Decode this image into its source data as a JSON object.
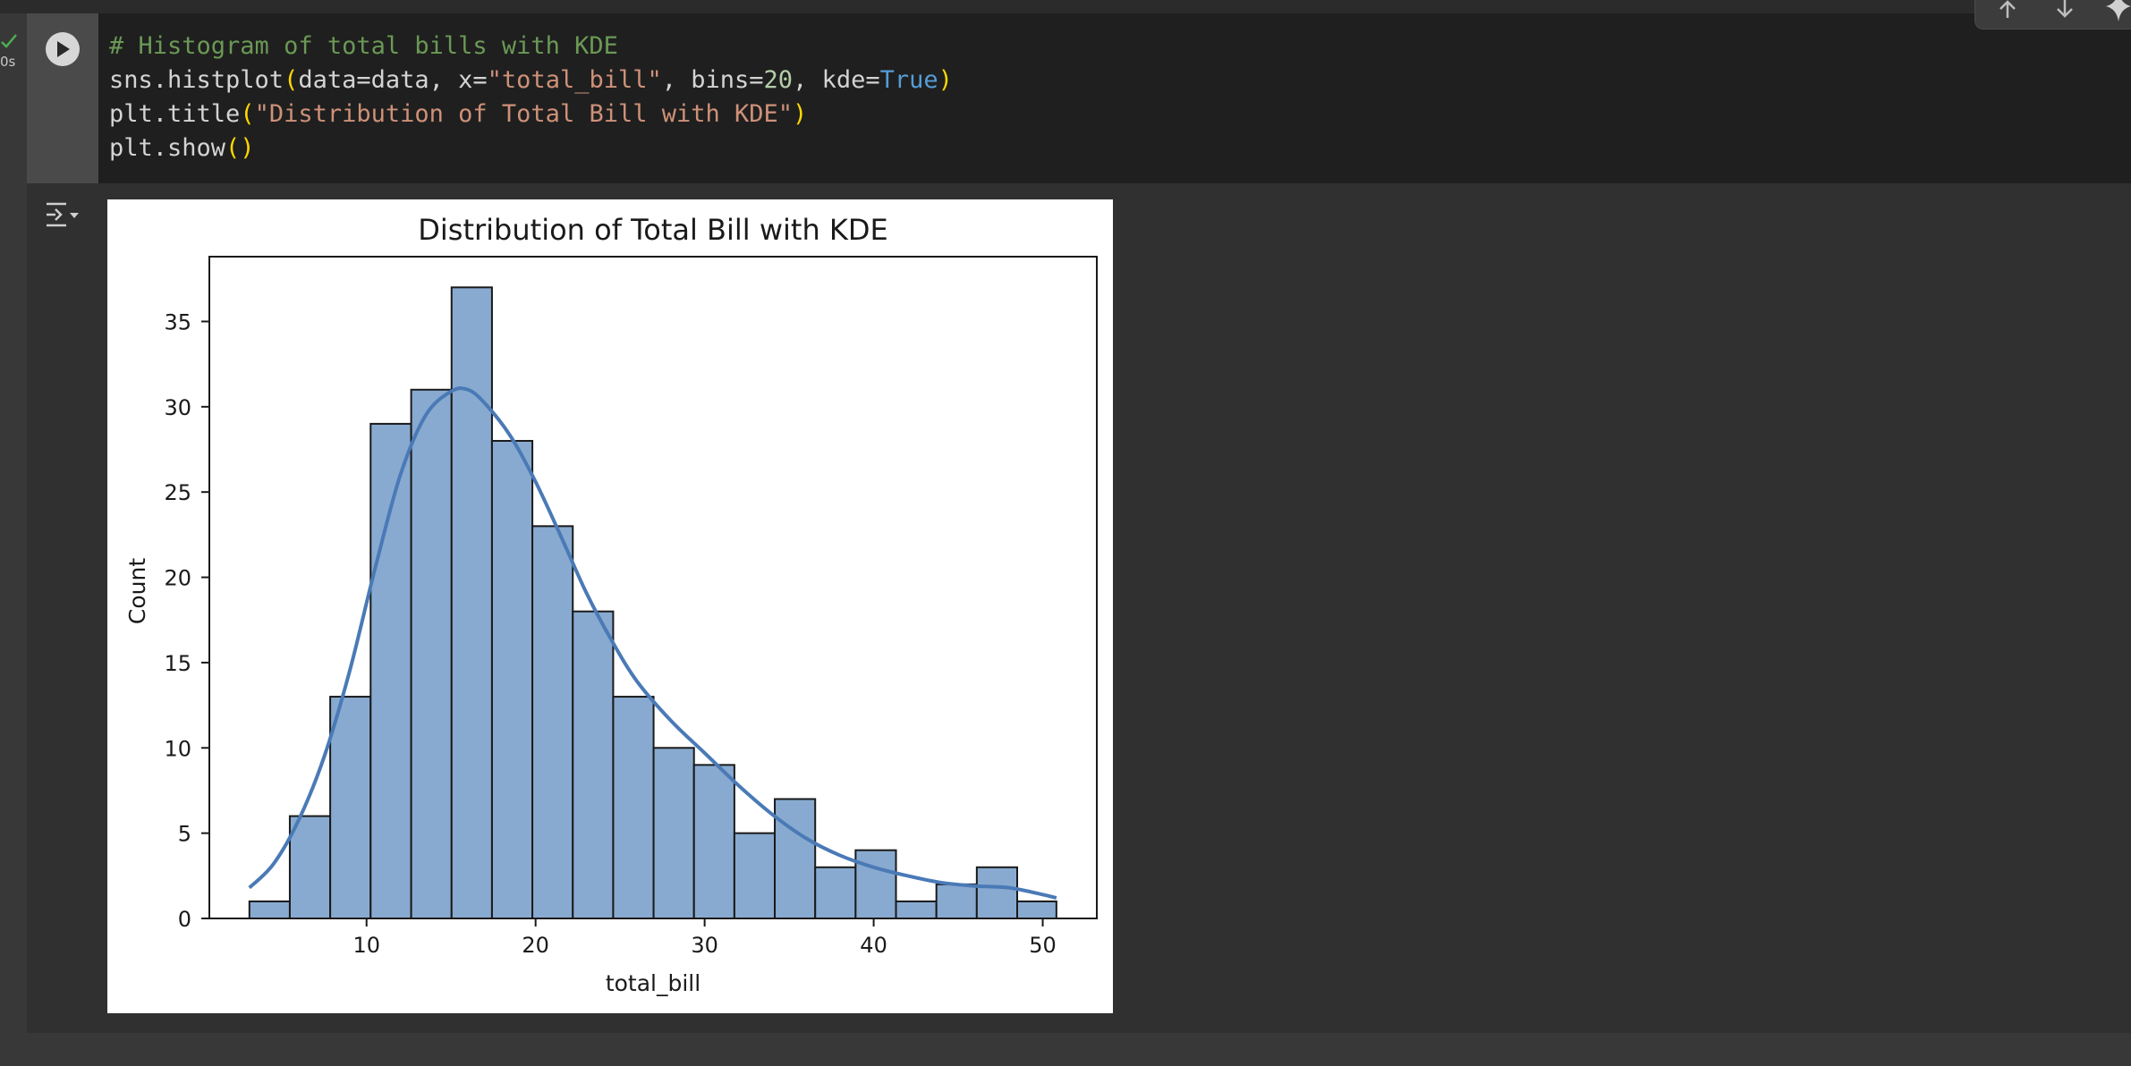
{
  "exec": {
    "time": "0s"
  },
  "code": {
    "comment": "# Histogram of total bills with KDE",
    "line2": {
      "a": "sns.histplot",
      "p1": "(",
      "b": "data=data, x=",
      "s1": "\"total_bill\"",
      "c": ", bins=",
      "n1": "20",
      "d": ", kde=",
      "k1": "True",
      "p2": ")"
    },
    "line3": {
      "a": "plt.title",
      "p1": "(",
      "s1": "\"Distribution of Total Bill with KDE\"",
      "p2": ")"
    },
    "line4": {
      "a": "plt.show",
      "p1": "()"
    }
  },
  "icons": {
    "exec_status": "check-icon",
    "run": "play-icon",
    "output_toggle": "output-toggle-icon",
    "move_up": "arrow-up-icon",
    "move_down": "arrow-down-icon",
    "gemini": "sparkle-icon"
  },
  "colors": {
    "bar_fill": "#88aad0",
    "bar_edge": "#1a1a1a",
    "kde_line": "#4a7ab6",
    "check": "#4caf50"
  },
  "chart_data": {
    "type": "bar",
    "title": "Distribution of Total Bill with KDE",
    "xlabel": "total_bill",
    "ylabel": "Count",
    "xlim": [
      0.7,
      53.2
    ],
    "ylim": [
      0,
      38.8
    ],
    "xticks": [
      10,
      20,
      30,
      40,
      50
    ],
    "yticks": [
      0,
      5,
      10,
      15,
      20,
      25,
      30,
      35
    ],
    "bin_edges": [
      3.07,
      5.46,
      7.85,
      10.24,
      12.64,
      15.03,
      17.42,
      19.81,
      22.2,
      24.59,
      26.98,
      29.37,
      31.76,
      34.15,
      36.54,
      38.93,
      41.32,
      43.71,
      46.1,
      48.49,
      50.81
    ],
    "counts": [
      1,
      6,
      13,
      29,
      31,
      37,
      28,
      23,
      18,
      13,
      10,
      9,
      5,
      7,
      3,
      4,
      1,
      2,
      3,
      1
    ],
    "kde": {
      "x": [
        3.07,
        4.5,
        6,
        7.5,
        9,
        10.5,
        12,
        13.5,
        15,
        16,
        17,
        18.5,
        20,
        21.5,
        23,
        24.5,
        26,
        28,
        30,
        32,
        34,
        36,
        38,
        40,
        42,
        44,
        46,
        48,
        50,
        50.81
      ],
      "y": [
        1.8,
        3.2,
        5.8,
        9.5,
        14.5,
        20.5,
        26,
        29.5,
        30.9,
        31,
        30.2,
        28.3,
        25.6,
        22.4,
        19.1,
        16.3,
        13.9,
        11.6,
        9.7,
        7.8,
        6.1,
        4.7,
        3.7,
        3.0,
        2.5,
        2.1,
        1.9,
        1.8,
        1.4,
        1.2
      ]
    },
    "grid": false,
    "legend": "none"
  }
}
